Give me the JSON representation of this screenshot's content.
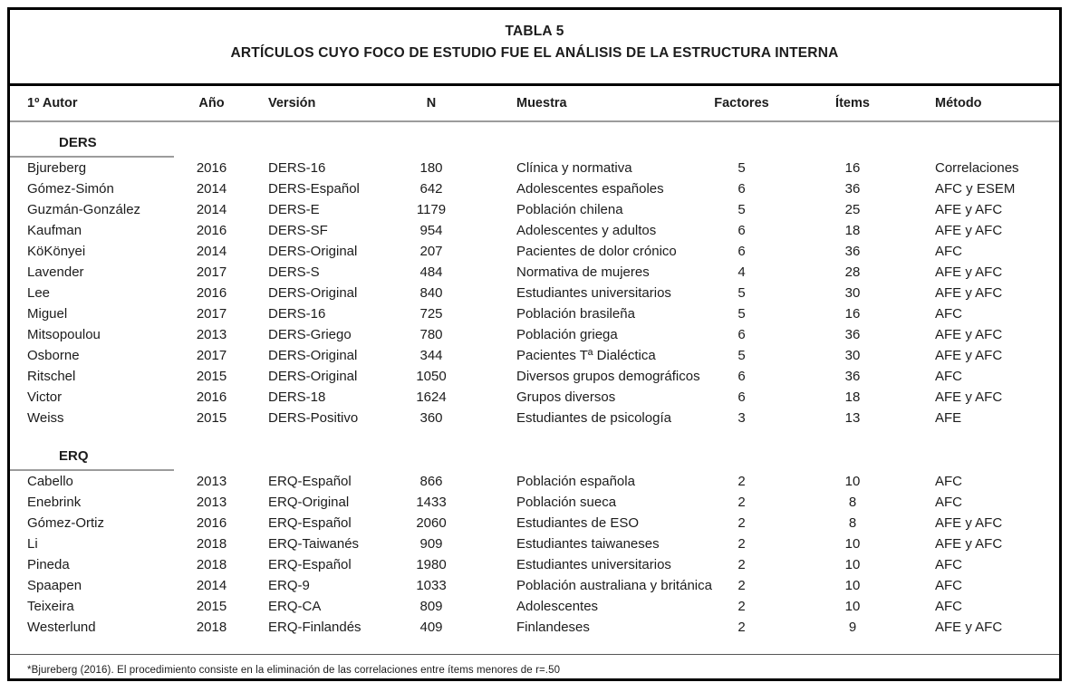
{
  "table": {
    "title": "TABLA 5",
    "subtitle": "ARTÍCULOS CUYO FOCO DE ESTUDIO FUE EL ANÁLISIS DE LA ESTRUCTURA INTERNA",
    "columns": [
      "1º Autor",
      "Año",
      "Versión",
      "N",
      "Muestra",
      "Factores",
      "Ítems",
      "Método"
    ],
    "column_keys": [
      "autor",
      "ano",
      "version",
      "n",
      "muestra",
      "factores",
      "items",
      "metodo"
    ],
    "sections": [
      {
        "label": "DERS",
        "rows": [
          [
            "Bjureberg",
            "2016",
            "DERS-16",
            "180",
            "Clínica y normativa",
            "5",
            "16",
            "Correlaciones"
          ],
          [
            "Gómez-Simón",
            "2014",
            "DERS-Español",
            "642",
            "Adolescentes españoles",
            "6",
            "36",
            "AFC y ESEM"
          ],
          [
            "Guzmán-González",
            "2014",
            "DERS-E",
            "1179",
            "Población chilena",
            "5",
            "25",
            "AFE y AFC"
          ],
          [
            "Kaufman",
            "2016",
            "DERS-SF",
            "954",
            "Adolescentes y adultos",
            "6",
            "18",
            "AFE y AFC"
          ],
          [
            "KöKönyei",
            "2014",
            "DERS-Original",
            "207",
            "Pacientes de dolor crónico",
            "6",
            "36",
            "AFC"
          ],
          [
            "Lavender",
            "2017",
            "DERS-S",
            "484",
            "Normativa de mujeres",
            "4",
            "28",
            "AFE y AFC"
          ],
          [
            "Lee",
            "2016",
            "DERS-Original",
            "840",
            "Estudiantes universitarios",
            "5",
            "30",
            "AFE y AFC"
          ],
          [
            "Miguel",
            "2017",
            "DERS-16",
            "725",
            "Población brasileña",
            "5",
            "16",
            "AFC"
          ],
          [
            "Mitsopoulou",
            "2013",
            "DERS-Griego",
            "780",
            "Población griega",
            "6",
            "36",
            "AFE y AFC"
          ],
          [
            "Osborne",
            "2017",
            "DERS-Original",
            "344",
            "Pacientes Tª Dialéctica",
            "5",
            "30",
            "AFE y AFC"
          ],
          [
            "Ritschel",
            "2015",
            "DERS-Original",
            "1050",
            "Diversos grupos demográficos",
            "6",
            "36",
            "AFC"
          ],
          [
            "Victor",
            "2016",
            "DERS-18",
            "1624",
            "Grupos diversos",
            "6",
            "18",
            "AFE y AFC"
          ],
          [
            "Weiss",
            "2015",
            "DERS-Positivo",
            "360",
            "Estudiantes de psicología",
            "3",
            "13",
            "AFE"
          ]
        ]
      },
      {
        "label": "ERQ",
        "rows": [
          [
            "Cabello",
            "2013",
            "ERQ-Español",
            "866",
            "Población española",
            "2",
            "10",
            "AFC"
          ],
          [
            "Enebrink",
            "2013",
            "ERQ-Original",
            "1433",
            "Población sueca",
            "2",
            "8",
            "AFC"
          ],
          [
            "Gómez-Ortiz",
            "2016",
            "ERQ-Español",
            "2060",
            "Estudiantes de ESO",
            "2",
            "8",
            "AFE y AFC"
          ],
          [
            "Li",
            "2018",
            "ERQ-Taiwanés",
            "909",
            "Estudiantes taiwaneses",
            "2",
            "10",
            "AFE y AFC"
          ],
          [
            "Pineda",
            "2018",
            "ERQ-Español",
            "1980",
            "Estudiantes universitarios",
            "2",
            "10",
            "AFC"
          ],
          [
            "Spaapen",
            "2014",
            "ERQ-9",
            "1033",
            "Población australiana y británica",
            "2",
            "10",
            "AFC"
          ],
          [
            "Teixeira",
            "2015",
            "ERQ-CA",
            "809",
            "Adolescentes",
            "2",
            "10",
            "AFC"
          ],
          [
            "Westerlund",
            "2018",
            "ERQ-Finlandés",
            "409",
            "Finlandeses",
            "2",
            "9",
            "AFE y AFC"
          ]
        ]
      }
    ],
    "footnote": "*Bjureberg (2016). El procedimiento consiste en la eliminación de las correlaciones entre ítems menores de r=.50"
  }
}
